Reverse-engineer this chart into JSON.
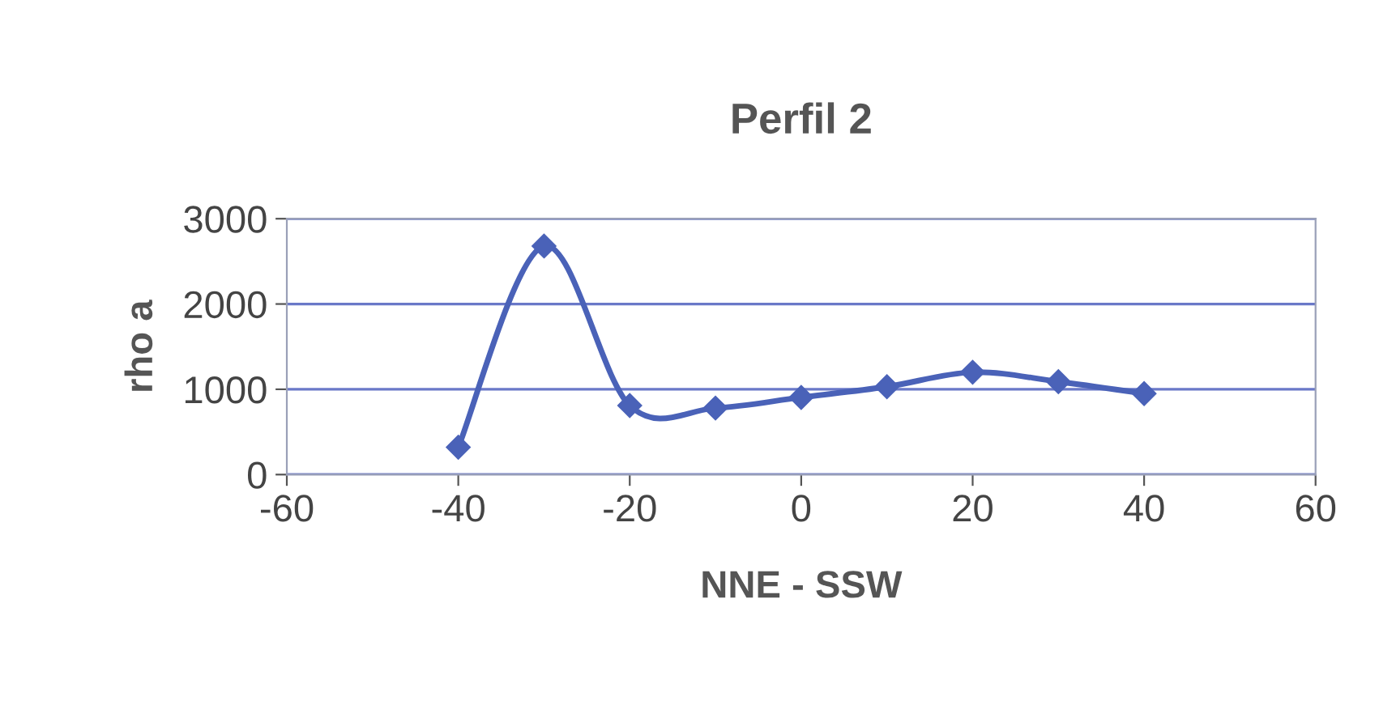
{
  "chart_data": {
    "type": "line",
    "title": "Perfil 2",
    "xlabel": "NNE - SSW",
    "ylabel": "rho a",
    "x": [
      -40,
      -30,
      -20,
      -10,
      0,
      10,
      20,
      30,
      40
    ],
    "series": [
      {
        "color": "#4a62b8",
        "values": [
          320,
          2680,
          810,
          780,
          905,
          1030,
          1200,
          1090,
          950
        ]
      }
    ],
    "xlim": [
      -60,
      60
    ],
    "xticks": [
      -60,
      -40,
      -20,
      0,
      20,
      40,
      60
    ],
    "ylim": [
      0,
      3000
    ],
    "yticks": [
      0,
      1000,
      2000,
      3000
    ],
    "grid": "y",
    "marker": "diamond",
    "line_style": "solid",
    "legend": false
  }
}
